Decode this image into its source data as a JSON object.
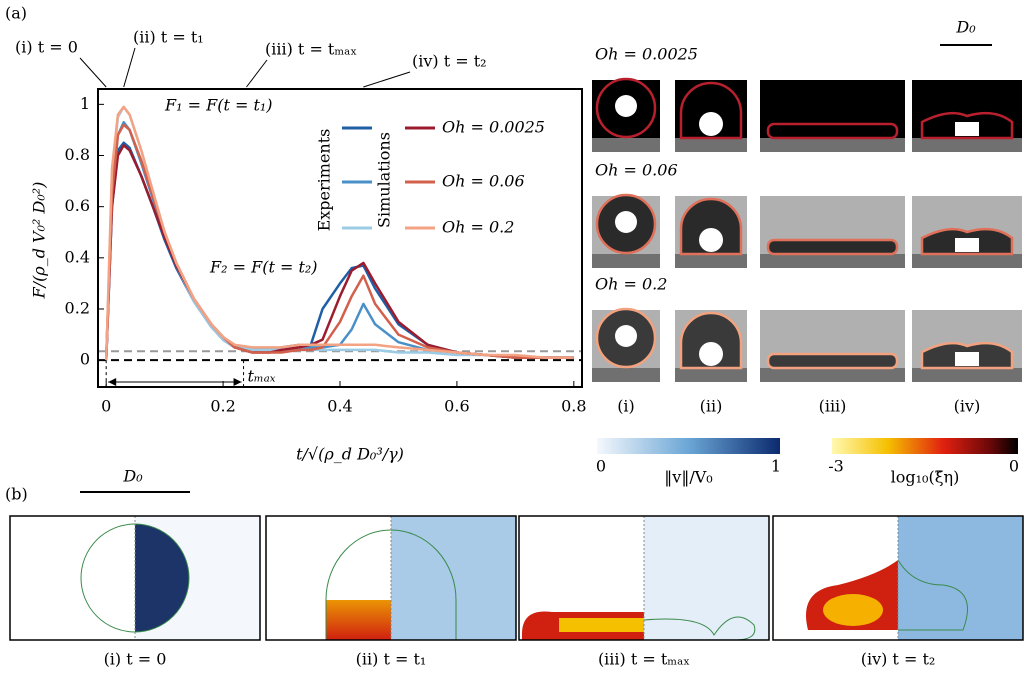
{
  "panel_label": "(a)",
  "chart_data": {
    "type": "line",
    "x_label": "t/√(ρ_d D₀³/γ)",
    "y_label": "F/(ρ_d V₀² D₀²)",
    "x": [
      0,
      0.01,
      0.02,
      0.03,
      0.04,
      0.06,
      0.08,
      0.1,
      0.12,
      0.15,
      0.18,
      0.2,
      0.22,
      0.25,
      0.28,
      0.3,
      0.33,
      0.35,
      0.37,
      0.4,
      0.42,
      0.44,
      0.46,
      0.5,
      0.55,
      0.6,
      0.65,
      0.7,
      0.75,
      0.8
    ],
    "legend": {
      "columns": [
        "Experiments",
        "Simulations"
      ],
      "rows": [
        "Oh = 0.0025",
        "Oh = 0.06",
        "Oh = 0.2"
      ]
    },
    "series": [
      {
        "color": "#1f5fa6",
        "values": [
          0,
          0.6,
          0.82,
          0.85,
          0.83,
          0.72,
          0.6,
          0.47,
          0.36,
          0.23,
          0.13,
          0.08,
          0.05,
          0.04,
          0.04,
          0.05,
          0.06,
          0.06,
          0.2,
          0.3,
          0.36,
          0.37,
          0.28,
          0.14,
          0.06,
          0.03,
          0.02,
          0.01,
          0.01,
          0.01
        ]
      },
      {
        "color": "#4a90c8",
        "values": [
          0,
          0.65,
          0.88,
          0.93,
          0.9,
          0.77,
          0.63,
          0.49,
          0.37,
          0.23,
          0.13,
          0.08,
          0.05,
          0.04,
          0.04,
          0.04,
          0.04,
          0.05,
          0.05,
          0.06,
          0.12,
          0.22,
          0.14,
          0.07,
          0.04,
          0.03,
          0.02,
          0.01,
          0.01,
          0.01
        ]
      },
      {
        "color": "#9ccbe6",
        "values": [
          0,
          0.72,
          0.95,
          0.99,
          0.96,
          0.82,
          0.66,
          0.5,
          0.37,
          0.23,
          0.13,
          0.08,
          0.05,
          0.04,
          0.04,
          0.04,
          0.04,
          0.04,
          0.04,
          0.04,
          0.04,
          0.04,
          0.04,
          0.03,
          0.03,
          0.02,
          0.02,
          0.01,
          0.01,
          0.01
        ]
      },
      {
        "color": "#9b1c2e",
        "values": [
          0,
          0.6,
          0.8,
          0.84,
          0.82,
          0.72,
          0.6,
          0.48,
          0.37,
          0.24,
          0.14,
          0.09,
          0.05,
          0.03,
          0.03,
          0.04,
          0.05,
          0.06,
          0.08,
          0.25,
          0.35,
          0.38,
          0.3,
          0.15,
          0.06,
          0.03,
          0.02,
          0.01,
          0.01,
          0.01
        ]
      },
      {
        "color": "#d2604a",
        "values": [
          0,
          0.65,
          0.88,
          0.92,
          0.9,
          0.78,
          0.64,
          0.5,
          0.38,
          0.24,
          0.14,
          0.09,
          0.05,
          0.03,
          0.03,
          0.03,
          0.04,
          0.04,
          0.05,
          0.15,
          0.25,
          0.33,
          0.22,
          0.1,
          0.05,
          0.03,
          0.02,
          0.01,
          0.01,
          0.01
        ]
      },
      {
        "color": "#f3a383",
        "values": [
          0,
          0.75,
          0.96,
          0.99,
          0.96,
          0.82,
          0.66,
          0.5,
          0.38,
          0.24,
          0.14,
          0.09,
          0.06,
          0.05,
          0.05,
          0.05,
          0.06,
          0.06,
          0.06,
          0.06,
          0.06,
          0.06,
          0.06,
          0.05,
          0.04,
          0.03,
          0.02,
          0.02,
          0.01,
          0.01
        ]
      }
    ],
    "xlim": [
      -0.014,
      0.814
    ],
    "ylim": [
      -0.105,
      1.06
    ],
    "xticks": [
      0,
      0.2,
      0.4,
      0.6,
      0.8
    ],
    "yticks": [
      0,
      0.2,
      0.4,
      0.6,
      0.8,
      1
    ],
    "reference_lines": [
      {
        "value": 0,
        "color": "#000000"
      },
      {
        "value": 0.035,
        "color": "#999999"
      }
    ],
    "time_markers": [
      {
        "x": 0,
        "label": "(i) t = 0"
      },
      {
        "x": 0.03,
        "label": "(ii) t = t₁"
      },
      {
        "x": 0.24,
        "label": "(iii) t = tₘₐₓ"
      },
      {
        "x": 0.44,
        "label": "(iv) t = t₂"
      }
    ],
    "tmax": {
      "x": 0.235,
      "label": "tₘₐₓ"
    },
    "annotations": [
      "F₁ = F(t = t₁)",
      "F₂ = F(t = t₂)"
    ]
  },
  "images": {
    "scale": "D₀",
    "rows": [
      "Oh = 0.0025",
      "Oh = 0.06",
      "Oh = 0.2"
    ],
    "columns": [
      "(i)",
      "(ii)",
      "(iii)",
      "(iv)"
    ]
  },
  "colorbars": [
    {
      "range": [
        0,
        1
      ],
      "label": "‖v‖/V₀"
    },
    {
      "range": [
        -3,
        0
      ],
      "label": "log₁₀(ξ̃η)"
    }
  ],
  "panel_b": {
    "label": "(b)",
    "scale": "D₀",
    "captions": [
      "(i) t = 0",
      "(ii) t = t₁",
      "(iii) t = tₘₐₓ",
      "(iv) t = t₂"
    ]
  }
}
